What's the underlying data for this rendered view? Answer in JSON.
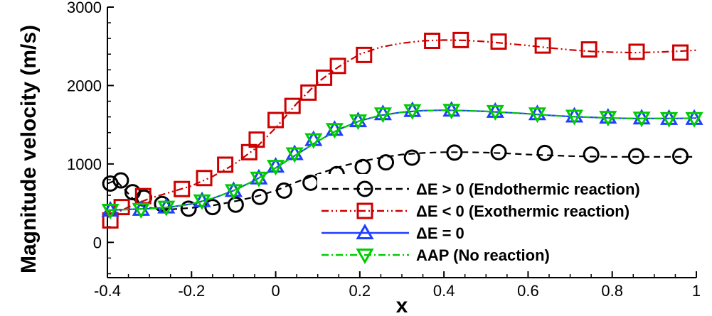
{
  "chart_data": {
    "type": "line",
    "title": "",
    "xlabel": "x",
    "ylabel": "Magnitude velocity (m/s)",
    "xlim": [
      -0.4,
      1.0
    ],
    "ylim": [
      -450,
      3000
    ],
    "xticks": [
      -0.4,
      -0.2,
      0,
      0.2,
      0.4,
      0.6,
      0.8,
      1
    ],
    "xtick_labels": [
      "-0.4",
      "-0.2",
      "0",
      "0.2",
      "0.4",
      "0.6",
      "0.8",
      "1"
    ],
    "yticks": [
      0,
      1000,
      2000,
      3000
    ],
    "ytick_labels": [
      "0",
      "1000",
      "2000",
      "3000"
    ],
    "grid": false,
    "legend_position": "bottom-right",
    "series": [
      {
        "name": "ΔE > 0 (Endothermic reaction)",
        "color": "#000000",
        "line_style": "dashed",
        "marker": "circle",
        "x": [
          -0.4,
          -0.38,
          -0.36,
          -0.34,
          -0.32,
          -0.3,
          -0.25,
          -0.2,
          -0.15,
          -0.1,
          -0.05,
          0.0,
          0.05,
          0.1,
          0.15,
          0.2,
          0.25,
          0.3,
          0.35,
          0.4,
          0.45,
          0.5,
          0.55,
          0.6,
          0.65,
          0.7,
          0.75,
          0.8,
          0.85,
          0.9,
          0.95,
          1.0
        ],
        "y": [
          750,
          790,
          680,
          560,
          470,
          440,
          420,
          440,
          470,
          520,
          580,
          660,
          770,
          870,
          960,
          1030,
          1080,
          1120,
          1140,
          1150,
          1150,
          1145,
          1135,
          1120,
          1110,
          1100,
          1095,
          1090,
          1090,
          1090,
          1090,
          1090
        ],
        "marker_x": [
          -0.393,
          -0.368,
          -0.34,
          -0.313,
          -0.27,
          -0.207,
          -0.15,
          -0.095,
          -0.038,
          0.02,
          0.083,
          0.145,
          0.207,
          0.262,
          0.324,
          0.425,
          0.53,
          0.64,
          0.75,
          0.857,
          0.962
        ],
        "marker_y": [
          750,
          790,
          640,
          570,
          490,
          430,
          450,
          480,
          580,
          660,
          760,
          870,
          960,
          1020,
          1080,
          1145,
          1150,
          1140,
          1120,
          1100,
          1100
        ]
      },
      {
        "name": "ΔE < 0 (Exothermic reaction)",
        "color": "#cc0000",
        "line_style": "dash-dot-dot",
        "marker": "square",
        "x": [
          -0.4,
          -0.35,
          -0.3,
          -0.25,
          -0.2,
          -0.15,
          -0.1,
          -0.05,
          0.0,
          0.05,
          0.1,
          0.15,
          0.2,
          0.25,
          0.3,
          0.35,
          0.4,
          0.45,
          0.5,
          0.55,
          0.6,
          0.65,
          0.7,
          0.75,
          0.8,
          0.85,
          0.9,
          0.95,
          1.0
        ],
        "y": [
          320,
          450,
          560,
          640,
          720,
          840,
          990,
          1190,
          1460,
          1770,
          2040,
          2240,
          2400,
          2490,
          2540,
          2570,
          2580,
          2575,
          2560,
          2535,
          2510,
          2480,
          2455,
          2435,
          2425,
          2420,
          2425,
          2435,
          2450
        ],
        "marker_x": [
          -0.393,
          -0.366,
          -0.315,
          -0.223,
          -0.17,
          -0.12,
          -0.063,
          -0.045,
          0.0,
          0.04,
          0.078,
          0.115,
          0.148,
          0.21,
          0.372,
          0.44,
          0.53,
          0.635,
          0.745,
          0.858,
          0.962
        ],
        "marker_y": [
          280,
          450,
          590,
          680,
          820,
          990,
          1150,
          1310,
          1560,
          1740,
          1910,
          2100,
          2250,
          2390,
          2570,
          2580,
          2560,
          2510,
          2460,
          2430,
          2420
        ]
      },
      {
        "name": "ΔE = 0",
        "color": "#1f3fff",
        "line_style": "solid",
        "marker": "triangle-up",
        "x": [
          -0.4,
          -0.35,
          -0.3,
          -0.25,
          -0.2,
          -0.15,
          -0.1,
          -0.05,
          0.0,
          0.05,
          0.1,
          0.15,
          0.2,
          0.25,
          0.3,
          0.35,
          0.4,
          0.45,
          0.5,
          0.55,
          0.6,
          0.65,
          0.7,
          0.75,
          0.8,
          0.85,
          0.9,
          0.95,
          1.0
        ],
        "y": [
          410,
          420,
          430,
          450,
          490,
          560,
          660,
          790,
          950,
          1120,
          1290,
          1440,
          1550,
          1620,
          1660,
          1680,
          1685,
          1680,
          1670,
          1655,
          1640,
          1620,
          1605,
          1595,
          1585,
          1580,
          1580,
          1580,
          1585
        ],
        "marker_x": [
          -0.393,
          -0.32,
          -0.26,
          -0.175,
          -0.1,
          -0.04,
          0.0,
          0.045,
          0.09,
          0.14,
          0.196,
          0.255,
          0.325,
          0.418,
          0.522,
          0.622,
          0.71,
          0.79,
          0.87,
          0.935,
          0.995
        ],
        "marker_y": [
          410,
          420,
          450,
          530,
          660,
          820,
          970,
          1130,
          1310,
          1440,
          1550,
          1640,
          1680,
          1685,
          1670,
          1640,
          1610,
          1595,
          1585,
          1580,
          1580
        ]
      },
      {
        "name": "AAP (No reaction)",
        "color": "#00cc00",
        "line_style": "dash-dot",
        "marker": "triangle-down",
        "x": [
          -0.4,
          -0.35,
          -0.3,
          -0.25,
          -0.2,
          -0.15,
          -0.1,
          -0.05,
          0.0,
          0.05,
          0.1,
          0.15,
          0.2,
          0.25,
          0.3,
          0.35,
          0.4,
          0.45,
          0.5,
          0.55,
          0.6,
          0.65,
          0.7,
          0.75,
          0.8,
          0.85,
          0.9,
          0.95,
          1.0
        ],
        "y": [
          410,
          420,
          430,
          450,
          490,
          560,
          660,
          790,
          950,
          1120,
          1290,
          1440,
          1550,
          1620,
          1660,
          1680,
          1685,
          1680,
          1670,
          1655,
          1640,
          1620,
          1605,
          1595,
          1585,
          1580,
          1580,
          1580,
          1585
        ],
        "marker_x": [
          -0.393,
          -0.32,
          -0.26,
          -0.175,
          -0.1,
          -0.04,
          0.0,
          0.045,
          0.09,
          0.14,
          0.196,
          0.255,
          0.325,
          0.418,
          0.522,
          0.622,
          0.71,
          0.79,
          0.87,
          0.935,
          0.995
        ],
        "marker_y": [
          410,
          420,
          450,
          530,
          660,
          820,
          970,
          1130,
          1310,
          1440,
          1550,
          1640,
          1680,
          1685,
          1670,
          1640,
          1610,
          1595,
          1585,
          1580,
          1580
        ]
      }
    ]
  }
}
